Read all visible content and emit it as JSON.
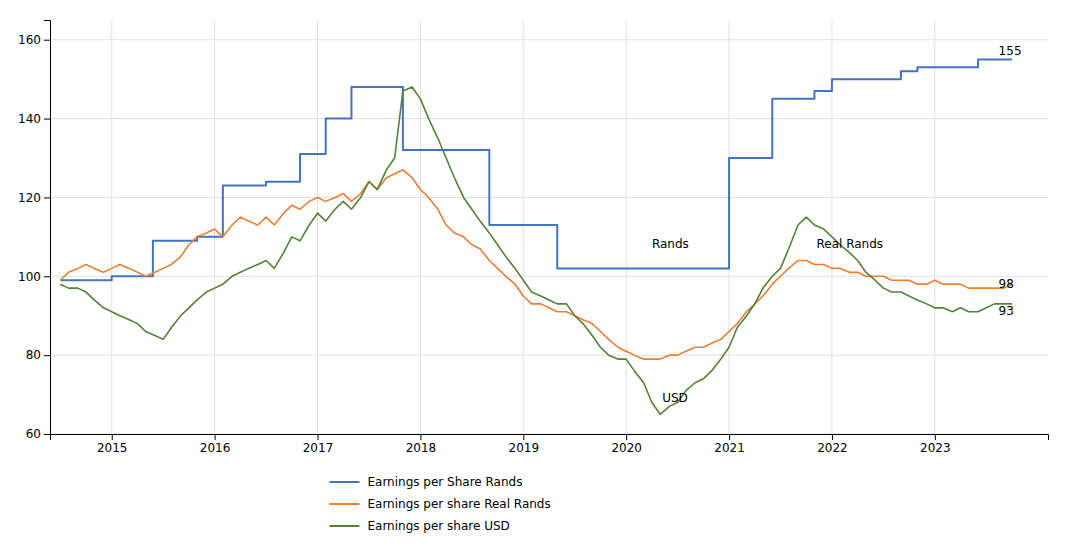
{
  "chart_data": {
    "type": "line",
    "xlim": [
      2014.4,
      2024.1
    ],
    "xticks": [
      2015,
      2016,
      2017,
      2018,
      2019,
      2020,
      2021,
      2022,
      2023
    ],
    "ylim": [
      60,
      165
    ],
    "yticks": [
      60,
      80,
      100,
      120,
      140,
      160
    ],
    "grid": true,
    "legend": "bottom",
    "annotations": [
      {
        "text": "Rands",
        "x": 2020.25,
        "y": 108
      },
      {
        "text": "Real Rands",
        "x": 2021.85,
        "y": 108
      },
      {
        "text": "USD",
        "x": 2020.35,
        "y": 69
      },
      {
        "text": "155",
        "x": 2023.62,
        "y": 157
      },
      {
        "text": "98",
        "x": 2023.62,
        "y": 98
      },
      {
        "text": "93",
        "x": 2023.62,
        "y": 91
      }
    ],
    "series": [
      {
        "name": "Earnings per Share Rands",
        "type": "step",
        "color": "#4472c4",
        "x": [
          2014.5,
          2015.0,
          2015.4,
          2015.83,
          2016.08,
          2016.5,
          2016.83,
          2017.08,
          2017.33,
          2017.83,
          2018.08,
          2018.33,
          2018.67,
          2019.0,
          2019.08,
          2019.33,
          2019.75,
          2020.08,
          2020.42,
          2020.75,
          2021.0,
          2021.25,
          2021.42,
          2021.67,
          2021.83,
          2022.0,
          2022.25,
          2022.5,
          2022.67,
          2022.83,
          2023.0,
          2023.17,
          2023.42,
          2023.75
        ],
        "values": [
          99,
          100,
          109,
          110,
          123,
          124,
          131,
          140,
          148,
          132,
          132,
          132,
          113,
          113,
          113,
          102,
          102,
          102,
          102,
          102,
          130,
          130,
          145,
          145,
          147,
          150,
          150,
          150,
          152,
          153,
          153,
          153,
          155,
          155
        ]
      },
      {
        "name": "Earnings per share Real Rands",
        "type": "line",
        "color": "#ed7d31",
        "x": [
          2014.5,
          2014.58,
          2014.67,
          2014.75,
          2014.83,
          2014.92,
          2015.0,
          2015.08,
          2015.17,
          2015.25,
          2015.33,
          2015.42,
          2015.5,
          2015.58,
          2015.67,
          2015.75,
          2015.83,
          2015.92,
          2016.0,
          2016.08,
          2016.17,
          2016.25,
          2016.33,
          2016.42,
          2016.5,
          2016.58,
          2016.67,
          2016.75,
          2016.83,
          2016.92,
          2017.0,
          2017.08,
          2017.17,
          2017.25,
          2017.33,
          2017.42,
          2017.5,
          2017.58,
          2017.67,
          2017.75,
          2017.83,
          2017.92,
          2018.0,
          2018.08,
          2018.17,
          2018.25,
          2018.33,
          2018.42,
          2018.5,
          2018.58,
          2018.67,
          2018.75,
          2018.83,
          2018.92,
          2019.0,
          2019.08,
          2019.17,
          2019.25,
          2019.33,
          2019.42,
          2019.5,
          2019.58,
          2019.67,
          2019.75,
          2019.83,
          2019.92,
          2020.0,
          2020.08,
          2020.17,
          2020.25,
          2020.33,
          2020.42,
          2020.5,
          2020.58,
          2020.67,
          2020.75,
          2020.83,
          2020.92,
          2021.0,
          2021.08,
          2021.17,
          2021.25,
          2021.33,
          2021.42,
          2021.5,
          2021.58,
          2021.67,
          2021.75,
          2021.83,
          2021.92,
          2022.0,
          2022.08,
          2022.17,
          2022.25,
          2022.33,
          2022.42,
          2022.5,
          2022.58,
          2022.67,
          2022.75,
          2022.83,
          2022.92,
          2023.0,
          2023.08,
          2023.17,
          2023.25,
          2023.33,
          2023.42,
          2023.5,
          2023.58,
          2023.67,
          2023.75
        ],
        "values": [
          99,
          101,
          102,
          103,
          102,
          101,
          102,
          103,
          102,
          101,
          100,
          101,
          102,
          103,
          105,
          108,
          110,
          111,
          112,
          110,
          113,
          115,
          114,
          113,
          115,
          113,
          116,
          118,
          117,
          119,
          120,
          119,
          120,
          121,
          119,
          121,
          124,
          122,
          125,
          126,
          127,
          125,
          122,
          120,
          117,
          113,
          111,
          110,
          108,
          107,
          104,
          102,
          100,
          98,
          95,
          93,
          93,
          92,
          91,
          91,
          90,
          89,
          88,
          86,
          84,
          82,
          81,
          80,
          79,
          79,
          79,
          80,
          80,
          81,
          82,
          82,
          83,
          84,
          86,
          88,
          91,
          93,
          95,
          98,
          100,
          102,
          104,
          104,
          103,
          103,
          102,
          102,
          101,
          101,
          100,
          100,
          100,
          99,
          99,
          99,
          98,
          98,
          99,
          98,
          98,
          98,
          97,
          97,
          97,
          97,
          97,
          98
        ]
      },
      {
        "name": "Earnings per share USD",
        "type": "line",
        "color": "#548235",
        "x": [
          2014.5,
          2014.58,
          2014.67,
          2014.75,
          2014.83,
          2014.92,
          2015.0,
          2015.08,
          2015.17,
          2015.25,
          2015.33,
          2015.42,
          2015.5,
          2015.58,
          2015.67,
          2015.75,
          2015.83,
          2015.92,
          2016.0,
          2016.08,
          2016.17,
          2016.25,
          2016.33,
          2016.42,
          2016.5,
          2016.58,
          2016.67,
          2016.75,
          2016.83,
          2016.92,
          2017.0,
          2017.08,
          2017.17,
          2017.25,
          2017.33,
          2017.42,
          2017.5,
          2017.58,
          2017.67,
          2017.75,
          2017.83,
          2017.92,
          2018.0,
          2018.08,
          2018.17,
          2018.25,
          2018.33,
          2018.42,
          2018.5,
          2018.58,
          2018.67,
          2018.75,
          2018.83,
          2018.92,
          2019.0,
          2019.08,
          2019.17,
          2019.25,
          2019.33,
          2019.42,
          2019.5,
          2019.58,
          2019.67,
          2019.75,
          2019.83,
          2019.92,
          2020.0,
          2020.08,
          2020.17,
          2020.25,
          2020.33,
          2020.42,
          2020.5,
          2020.58,
          2020.67,
          2020.75,
          2020.83,
          2020.92,
          2021.0,
          2021.08,
          2021.17,
          2021.25,
          2021.33,
          2021.42,
          2021.5,
          2021.58,
          2021.67,
          2021.75,
          2021.83,
          2021.92,
          2022.0,
          2022.08,
          2022.17,
          2022.25,
          2022.33,
          2022.42,
          2022.5,
          2022.58,
          2022.67,
          2022.75,
          2022.83,
          2022.92,
          2023.0,
          2023.08,
          2023.17,
          2023.25,
          2023.33,
          2023.42,
          2023.5,
          2023.58,
          2023.67,
          2023.75
        ],
        "values": [
          98,
          97,
          97,
          96,
          94,
          92,
          91,
          90,
          89,
          88,
          86,
          85,
          84,
          87,
          90,
          92,
          94,
          96,
          97,
          98,
          100,
          101,
          102,
          103,
          104,
          102,
          106,
          110,
          109,
          113,
          116,
          114,
          117,
          119,
          117,
          120,
          124,
          122,
          127,
          130,
          147,
          148,
          145,
          140,
          135,
          130,
          125,
          120,
          117,
          114,
          111,
          108,
          105,
          102,
          99,
          96,
          95,
          94,
          93,
          93,
          90,
          88,
          85,
          82,
          80,
          79,
          79,
          76,
          73,
          68,
          65,
          67,
          68,
          71,
          73,
          74,
          76,
          79,
          82,
          87,
          90,
          93,
          97,
          100,
          102,
          107,
          113,
          115,
          113,
          112,
          110,
          108,
          106,
          104,
          101,
          99,
          97,
          96,
          96,
          95,
          94,
          93,
          92,
          92,
          91,
          92,
          91,
          91,
          92,
          93,
          93,
          93
        ]
      }
    ]
  }
}
